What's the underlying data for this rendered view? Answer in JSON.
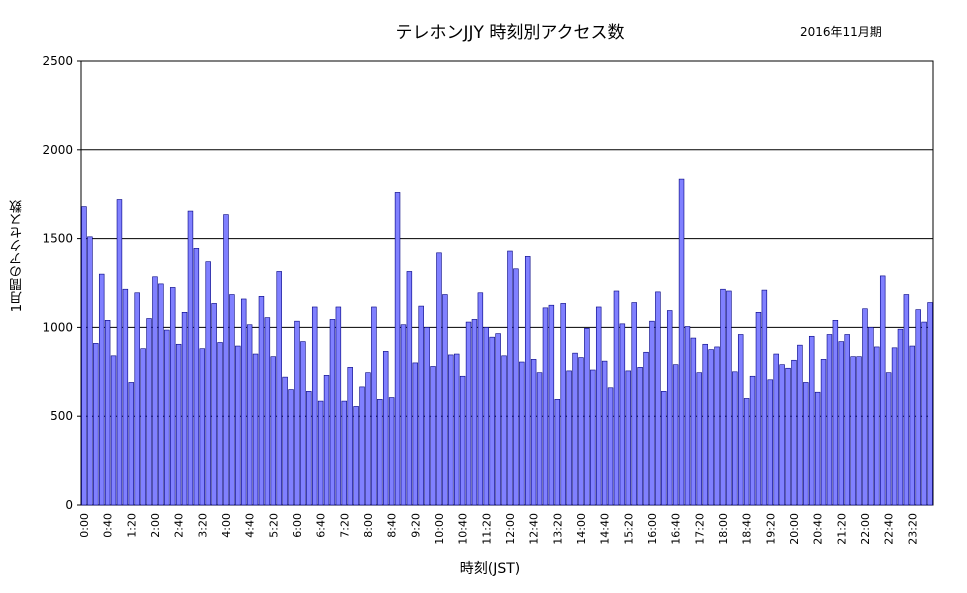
{
  "chart_data": {
    "type": "bar",
    "title": "テレホンJJY  時刻別アクセス数",
    "subtitle": "2016年11月期",
    "xlabel": "時刻(JST)",
    "ylabel": "1月間のアクセス数",
    "ylim": [
      0,
      2500
    ],
    "yticks": [
      0,
      500,
      1000,
      1500,
      2000,
      2500
    ],
    "grid": true,
    "colors": {
      "bar": "#8080ff",
      "bar_edge": "#000080"
    },
    "categories": [
      "0:00",
      "0:10",
      "0:20",
      "0:30",
      "0:40",
      "0:50",
      "1:00",
      "1:10",
      "1:20",
      "1:30",
      "1:40",
      "1:50",
      "2:00",
      "2:10",
      "2:20",
      "2:30",
      "2:40",
      "2:50",
      "3:00",
      "3:10",
      "3:20",
      "3:30",
      "3:40",
      "3:50",
      "4:00",
      "4:10",
      "4:20",
      "4:30",
      "4:40",
      "4:50",
      "5:00",
      "5:10",
      "5:20",
      "5:30",
      "5:40",
      "5:50",
      "6:00",
      "6:10",
      "6:20",
      "6:30",
      "6:40",
      "6:50",
      "7:00",
      "7:10",
      "7:20",
      "7:30",
      "7:40",
      "7:50",
      "8:00",
      "8:10",
      "8:20",
      "8:30",
      "8:40",
      "8:50",
      "9:00",
      "9:10",
      "9:20",
      "9:30",
      "9:40",
      "9:50",
      "10:00",
      "10:10",
      "10:20",
      "10:30",
      "10:40",
      "10:50",
      "11:00",
      "11:10",
      "11:20",
      "11:30",
      "11:40",
      "11:50",
      "12:00",
      "12:10",
      "12:20",
      "12:30",
      "12:40",
      "12:50",
      "13:00",
      "13:10",
      "13:20",
      "13:30",
      "13:40",
      "13:50",
      "14:00",
      "14:10",
      "14:20",
      "14:30",
      "14:40",
      "14:50",
      "15:00",
      "15:10",
      "15:20",
      "15:30",
      "15:40",
      "15:50",
      "16:00",
      "16:10",
      "16:20",
      "16:30",
      "16:40",
      "16:50",
      "17:00",
      "17:10",
      "17:20",
      "17:30",
      "17:40",
      "17:50",
      "18:00",
      "18:10",
      "18:20",
      "18:30",
      "18:40",
      "18:50",
      "19:00",
      "19:10",
      "19:20",
      "19:30",
      "19:40",
      "19:50",
      "20:00",
      "20:10",
      "20:20",
      "20:30",
      "20:40",
      "20:50",
      "21:00",
      "21:10",
      "21:20",
      "21:30",
      "21:40",
      "21:50",
      "22:00",
      "22:10",
      "22:20",
      "22:30",
      "22:40",
      "22:50",
      "23:00",
      "23:10",
      "23:20",
      "23:30",
      "23:40",
      "23:50"
    ],
    "tick_labels": [
      "0:00",
      "0:40",
      "1:20",
      "2:00",
      "2:40",
      "3:20",
      "4:00",
      "4:40",
      "5:20",
      "6:00",
      "6:40",
      "7:20",
      "8:00",
      "8:40",
      "9:20",
      "10:00",
      "10:40",
      "11:20",
      "12:00",
      "12:40",
      "13:20",
      "14:00",
      "14:40",
      "15:20",
      "16:00",
      "16:40",
      "17:20",
      "18:00",
      "18:40",
      "19:20",
      "20:00",
      "20:40",
      "21:20",
      "22:00",
      "22:40",
      "23:20"
    ],
    "values": [
      1680,
      1510,
      910,
      1300,
      1040,
      840,
      1720,
      1215,
      690,
      1195,
      880,
      1050,
      1285,
      1245,
      985,
      1225,
      905,
      1085,
      1655,
      1445,
      880,
      1370,
      1135,
      915,
      1635,
      1185,
      895,
      1160,
      1015,
      850,
      1175,
      1055,
      835,
      1315,
      720,
      650,
      1035,
      920,
      640,
      1115,
      585,
      730,
      1045,
      1115,
      585,
      775,
      555,
      665,
      745,
      1115,
      595,
      865,
      605,
      1760,
      1015,
      1315,
      800,
      1120,
      1000,
      780,
      1420,
      1185,
      845,
      850,
      725,
      1030,
      1045,
      1195,
      1000,
      945,
      965,
      840,
      1430,
      1330,
      805,
      1400,
      820,
      745,
      1110,
      1125,
      595,
      1135,
      755,
      855,
      830,
      995,
      760,
      1115,
      810,
      660,
      1205,
      1020,
      755,
      1140,
      775,
      860,
      1035,
      1200,
      640,
      1095,
      790,
      1835,
      1005,
      940,
      745,
      905,
      875,
      890,
      1215,
      1205,
      750,
      960,
      600,
      725,
      1085,
      1210,
      705,
      850,
      790,
      770,
      815,
      900,
      690,
      950,
      635,
      820,
      960,
      1040,
      920,
      960,
      835,
      835,
      1105,
      1000,
      890,
      1290,
      745,
      885,
      990,
      1185,
      895,
      1100,
      1030,
      1140
    ]
  }
}
